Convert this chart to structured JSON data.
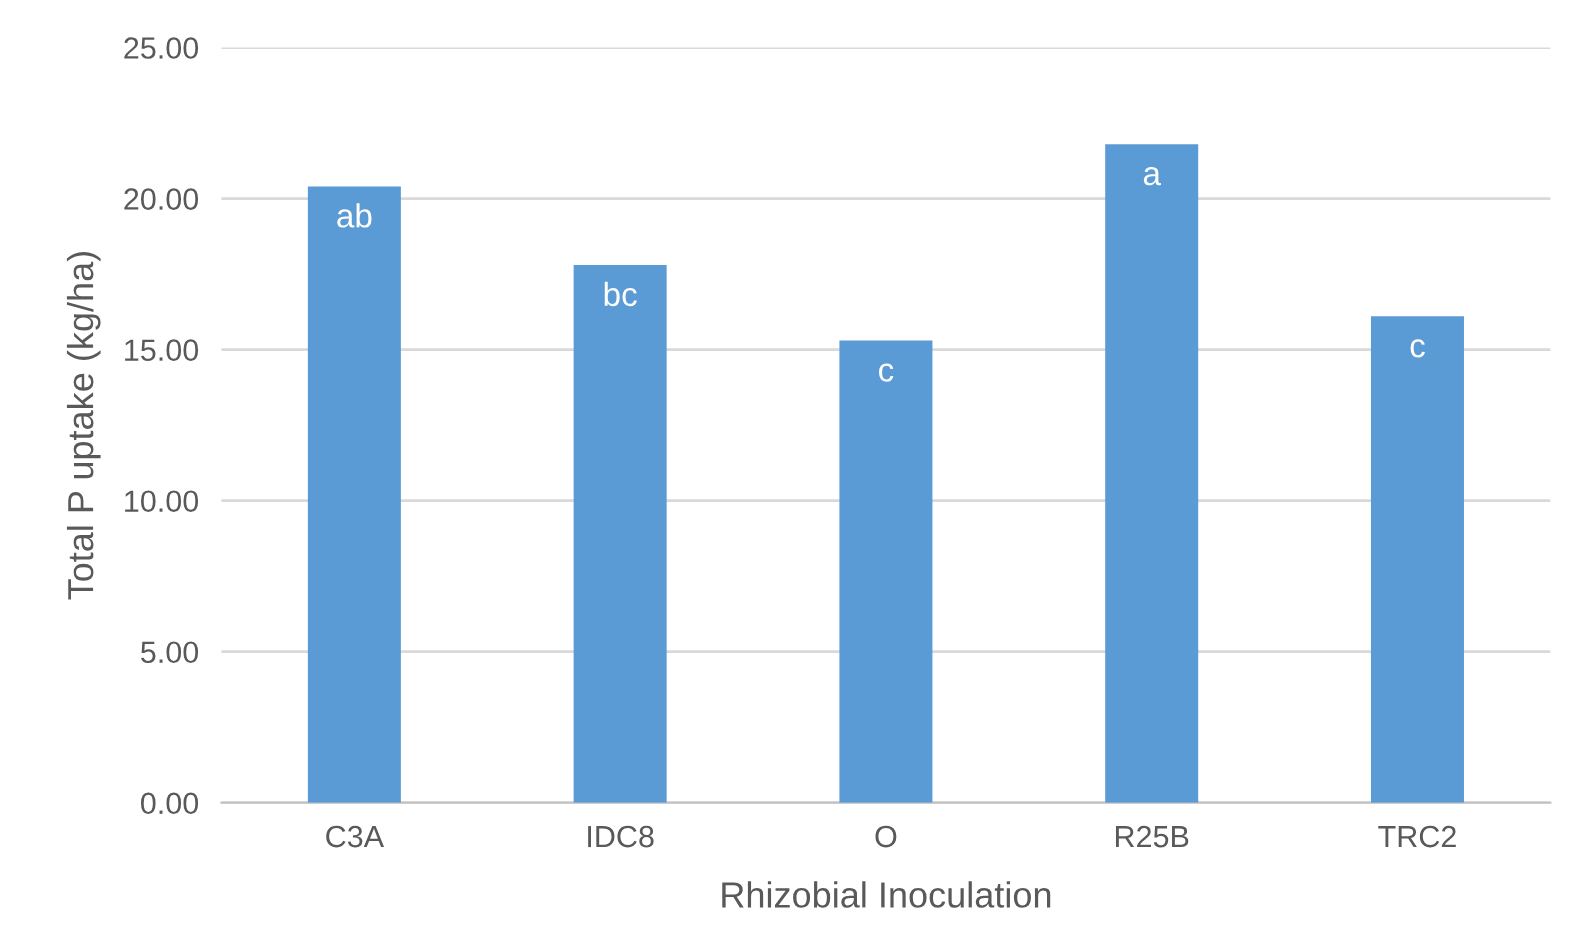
{
  "chart_data": {
    "type": "bar",
    "xlabel": "Rhizobial Inoculation",
    "ylabel": "Total P uptake (kg/ha)",
    "categories": [
      "C3A",
      "IDC8",
      "O",
      "R25B",
      "TRC2"
    ],
    "values": [
      20.4,
      17.8,
      15.3,
      21.8,
      16.1
    ],
    "color": "#5b9bd5",
    "ylim": [
      0,
      25
    ],
    "yticks": [
      {
        "value": 0,
        "label": "0.00"
      },
      {
        "value": 5,
        "label": "5.00"
      },
      {
        "value": 10,
        "label": "10.00"
      },
      {
        "value": 15,
        "label": "15.00"
      },
      {
        "value": 20,
        "label": "20.00"
      },
      {
        "value": 25,
        "label": "25.00"
      }
    ],
    "grid": "y",
    "legend": false,
    "annotations": [
      {
        "text": "ab",
        "x": "C3A",
        "y": 20.4
      },
      {
        "text": "bc",
        "x": "IDC8",
        "y": 17.8
      },
      {
        "text": "c",
        "x": "O",
        "y": 15.3
      },
      {
        "text": "a",
        "x": "R25B",
        "y": 21.8
      },
      {
        "text": "c",
        "x": "TRC2",
        "y": 16.1
      }
    ]
  }
}
